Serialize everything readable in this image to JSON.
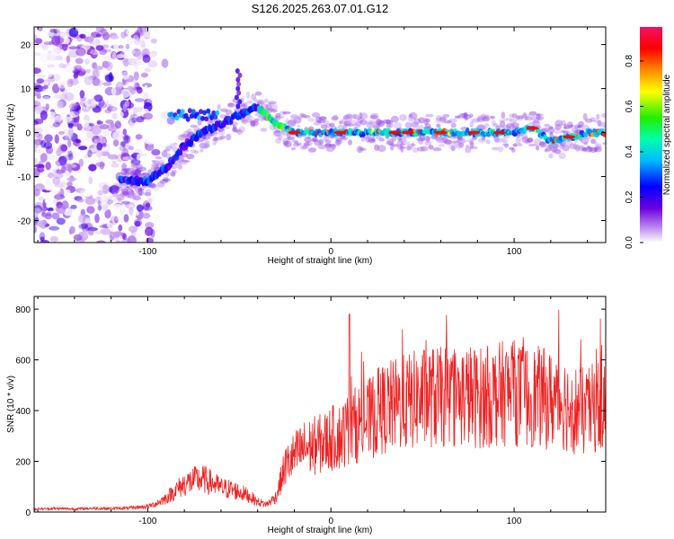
{
  "title": "S126.2025.263.07.01.G12",
  "chart_data": [
    {
      "type": "heatmap",
      "xlabel": "Height of straight line (km)",
      "ylabel": "Frequency (Hz)",
      "xlim": [
        -162,
        150
      ],
      "ylim": [
        -25,
        24
      ],
      "xticks": [
        -100,
        0,
        100
      ],
      "yticks": [
        -20,
        -10,
        0,
        10,
        20
      ],
      "xtick_labels": [
        "-100",
        "0",
        "100"
      ],
      "ytick_labels": [
        "-20",
        "-10",
        "0",
        "10",
        "20"
      ],
      "colorbar": {
        "label": "Normalized spectral amplitude",
        "range": [
          0,
          0.95
        ],
        "ticks": [
          "0.0",
          "0.2",
          "0.4",
          "0.6",
          "0.8"
        ]
      },
      "ridge": {
        "x": [
          -110,
          -100,
          -90,
          -80,
          -70,
          -60,
          -50,
          -40,
          -30,
          -20,
          0,
          20,
          40,
          60,
          80,
          100,
          110,
          120,
          130,
          140,
          150
        ],
        "freq_hz": [
          -11,
          -11,
          -8,
          -3,
          0,
          2,
          4,
          6,
          2,
          0,
          0,
          0,
          0,
          0,
          0,
          0,
          1,
          -2,
          -1,
          0,
          0
        ]
      }
    },
    {
      "type": "line",
      "xlabel": "Height of straight line (km)",
      "ylabel": "SNR (10 * v/v)",
      "xlim": [
        -162,
        150
      ],
      "ylim": [
        0,
        850
      ],
      "xticks": [
        -100,
        0,
        100
      ],
      "yticks": [
        0,
        200,
        400,
        600,
        800
      ],
      "xtick_labels": [
        "-100",
        "0",
        "100"
      ],
      "ytick_labels": [
        "0",
        "200",
        "400",
        "600",
        "800"
      ],
      "series": [
        {
          "name": "SNR",
          "color": "#ee2222",
          "x": [
            -162,
            -150,
            -140,
            -130,
            -120,
            -110,
            -100,
            -95,
            -90,
            -85,
            -80,
            -75,
            -70,
            -65,
            -60,
            -55,
            -50,
            -45,
            -40,
            -35,
            -30,
            -25,
            -20,
            -15,
            -10,
            -5,
            0,
            5,
            10,
            15,
            20,
            25,
            30,
            35,
            40,
            45,
            50,
            55,
            60,
            65,
            70,
            75,
            80,
            85,
            90,
            95,
            100,
            105,
            110,
            115,
            120,
            125,
            130,
            135,
            140,
            145,
            150
          ],
          "values": [
            12,
            14,
            12,
            15,
            14,
            16,
            22,
            35,
            55,
            85,
            110,
            125,
            130,
            115,
            95,
            90,
            80,
            65,
            40,
            30,
            60,
            180,
            220,
            250,
            260,
            270,
            290,
            300,
            330,
            350,
            360,
            390,
            410,
            420,
            430,
            440,
            450,
            455,
            450,
            460,
            455,
            460,
            450,
            455,
            460,
            470,
            470,
            460,
            455,
            450,
            440,
            445,
            420,
            400,
            390,
            420,
            430
          ]
        }
      ]
    }
  ]
}
